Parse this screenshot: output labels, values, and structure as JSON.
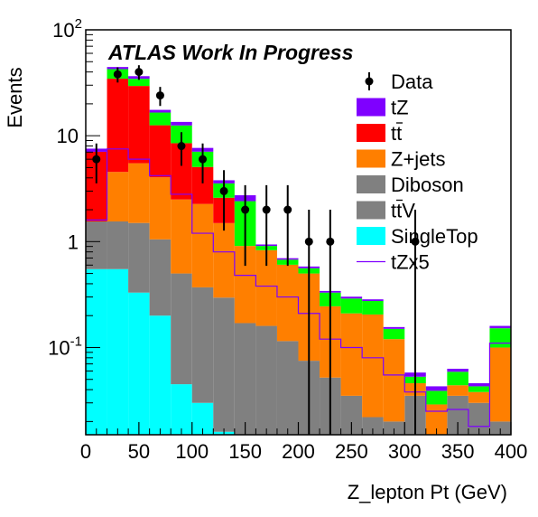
{
  "chart_data": {
    "type": "stacked-histogram",
    "annotation": "ATLAS Work In Progress",
    "xlabel": "Z_lepton Pt (GeV)",
    "ylabel": "Events",
    "xlim": [
      0,
      400
    ],
    "ylim": [
      0.015,
      100
    ],
    "yscale": "log",
    "x_ticks": [
      "0",
      "50",
      "100",
      "150",
      "200",
      "250",
      "300",
      "350",
      "400"
    ],
    "y_ticks": [
      {
        "base": "10",
        "exp": "-1",
        "value": 0.1
      },
      {
        "base": "1",
        "exp": "",
        "value": 1
      },
      {
        "base": "10",
        "exp": "",
        "value": 10
      },
      {
        "base": "10",
        "exp": "2",
        "value": 100
      }
    ],
    "bin_edges": [
      0,
      20,
      40,
      60,
      80,
      100,
      120,
      140,
      160,
      180,
      200,
      220,
      240,
      260,
      280,
      300,
      320,
      340,
      360,
      380,
      400
    ],
    "legend_position": "top-right",
    "stack": [
      {
        "name": "SingleTop",
        "color": "#00ffff",
        "values": [
          0.55,
          0.55,
          0.33,
          0.2,
          0.045,
          0.03,
          0.016,
          0.0,
          0.0,
          0.0,
          0.0,
          0.0,
          0.0,
          0.0,
          0.0,
          0.0,
          0.0,
          0.0,
          0.0,
          0.0
        ]
      },
      {
        "name": "ttV",
        "color": "#808080",
        "values": [
          1.0,
          1.0,
          1.17,
          0.85,
          0.455,
          0.34,
          0.28,
          0.17,
          0.16,
          0.115,
          0.075,
          0.052,
          0.0,
          0.022,
          0.02,
          0.0,
          0.015,
          0.0,
          0.0,
          0.0
        ]
      },
      {
        "name": "Diboson",
        "color": "#7f7f7f",
        "values": [
          0.0,
          0.0,
          0.0,
          0.0,
          0.0,
          0.0,
          0.0,
          0.0,
          0.0,
          0.0,
          0.0,
          0.0,
          0.035,
          0.0,
          0.0,
          0.035,
          0.0,
          0.035,
          0.03,
          0.02
        ]
      },
      {
        "name": "Z+jets",
        "color": "#ff7f00",
        "values": [
          0.0,
          3.0,
          4.0,
          3.0,
          2.0,
          1.9,
          1.2,
          0.74,
          0.67,
          0.49,
          0.425,
          0.193,
          0.175,
          0.183,
          0.1,
          0.011,
          0.014,
          0.009,
          0.008,
          0.08
        ]
      },
      {
        "name": "tt",
        "color": "#ff0000",
        "values": [
          5.5,
          30.0,
          24.0,
          8.5,
          6.0,
          2.8,
          1.1,
          0.0,
          0.0,
          0.0,
          0.0,
          0.0,
          0.0,
          0.0,
          0.0,
          0.0,
          0.0,
          0.0,
          0.0,
          0.0
        ]
      },
      {
        "name": "tZ-green",
        "color": "#00ff00",
        "values": [
          0.0,
          8.0,
          5.0,
          4.0,
          4.0,
          2.0,
          0.95,
          1.5,
          0.08,
          0.07,
          0.06,
          0.085,
          0.08,
          0.07,
          0.03,
          0.007,
          0.01,
          0.015,
          0.005,
          0.052
        ]
      },
      {
        "name": "tZ",
        "color": "#7f00ff",
        "values": [
          0.5,
          2.0,
          2.0,
          1.0,
          1.0,
          0.6,
          0.25,
          0.33,
          0.03,
          0.022,
          0.022,
          0.012,
          0.012,
          0.01,
          0.006,
          0.005,
          0.004,
          0.004,
          0.003,
          0.008
        ]
      }
    ],
    "overlay": {
      "name": "tZx5",
      "color": "#7f00ff",
      "values": [
        1.6,
        7.5,
        6.0,
        4.2,
        2.8,
        1.2,
        0.8,
        0.48,
        0.38,
        0.3,
        0.21,
        0.12,
        0.1,
        0.08,
        0.055,
        0.038,
        0.025,
        0.026,
        0.018,
        0.11
      ]
    },
    "data_points": {
      "name": "Data",
      "color": "#000000",
      "x": [
        10,
        30,
        50,
        70,
        90,
        110,
        130,
        150,
        170,
        190,
        210,
        230,
        250,
        270,
        290,
        310,
        330,
        350,
        370,
        390
      ],
      "y": [
        6,
        38,
        40,
        24,
        8,
        6,
        3,
        2,
        2,
        2,
        1,
        1,
        0,
        0,
        0,
        1,
        0,
        0,
        0,
        0
      ],
      "yerr": [
        2.45,
        6.2,
        6.3,
        4.9,
        2.8,
        2.45,
        1.73,
        1.41,
        1.41,
        1.41,
        1.0,
        1.0,
        0,
        0,
        0,
        1.0,
        0,
        0,
        0,
        0
      ]
    },
    "legend": [
      {
        "label": "Data",
        "kind": "marker",
        "color": "#000000"
      },
      {
        "label": "tZ",
        "kind": "box",
        "color": "#7f00ff"
      },
      {
        "label": "tt",
        "kind": "box",
        "color": "#ff0000",
        "overbar": "t"
      },
      {
        "label": "Z+jets",
        "kind": "box",
        "color": "#ff7f00"
      },
      {
        "label": "Diboson",
        "kind": "box",
        "color": "#808080"
      },
      {
        "label": "ttV",
        "kind": "box",
        "color": "#808080",
        "overbar": "t"
      },
      {
        "label": "SingleTop",
        "kind": "box",
        "color": "#00ffff"
      },
      {
        "label": "tZx5",
        "kind": "line",
        "color": "#7f00ff"
      }
    ]
  }
}
